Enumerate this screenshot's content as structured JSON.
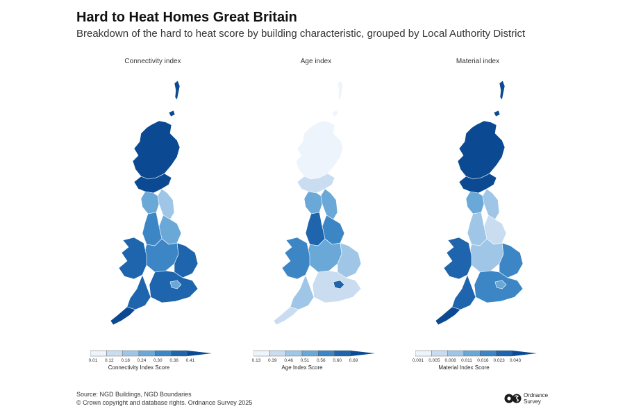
{
  "header": {
    "title": "Hard to Heat Homes Great Britain",
    "subtitle": "Breakdown of the hard to heat score by building characteristic, grouped by Local Authority District"
  },
  "palette": [
    "#eef4fb",
    "#c9dcf0",
    "#9fc6e6",
    "#6aa8d8",
    "#3d86c6",
    "#1f65ad",
    "#0b4a93"
  ],
  "panels": [
    {
      "title": "Connectivity index",
      "legend_label": "Connectivity Index Score",
      "ticks": [
        "0.01",
        "0.12",
        "0.18",
        "0.24",
        "0.30",
        "0.36",
        "0.41"
      ],
      "regions": {
        "shetland": 6,
        "orkney": 6,
        "scot_north": 6,
        "scot_south": 6,
        "north_east": 2,
        "cumbria": 3,
        "yorkshire": 3,
        "lancashire": 4,
        "midlands": 4,
        "east_anglia": 5,
        "wales": 5,
        "south_east": 5,
        "london": 3,
        "south_west": 5,
        "cornwall": 6,
        "n_ireland": null
      }
    },
    {
      "title": "Age index",
      "legend_label": "Age Index Score",
      "ticks": [
        "0.13",
        "0.39",
        "0.46",
        "0.51",
        "0.56",
        "0.60",
        "0.69"
      ],
      "regions": {
        "shetland": 0,
        "orkney": 0,
        "scot_north": 0,
        "scot_south": 1,
        "north_east": 3,
        "cumbria": 3,
        "yorkshire": 4,
        "lancashire": 5,
        "midlands": 3,
        "east_anglia": 2,
        "wales": 4,
        "south_east": 1,
        "london": 5,
        "south_west": 2,
        "cornwall": 1,
        "n_ireland": null
      }
    },
    {
      "title": "Material index",
      "legend_label": "Material Index Score",
      "ticks": [
        "0.001",
        "0.005",
        "0.008",
        "0.011",
        "0.016",
        "0.023",
        "0.043"
      ],
      "regions": {
        "shetland": 6,
        "orkney": 6,
        "scot_north": 6,
        "scot_south": 6,
        "north_east": 2,
        "cumbria": 3,
        "yorkshire": 1,
        "lancashire": 2,
        "midlands": 2,
        "east_anglia": 4,
        "wales": 5,
        "south_east": 4,
        "london": 3,
        "south_west": 5,
        "cornwall": 6,
        "n_ireland": null
      }
    }
  ],
  "footer": {
    "source": "Source: NGD Buildings, NGD Boundaries",
    "copyright": "© Crown copyright and database rights. Ordnance Survey 2025"
  },
  "brand": {
    "line1": "Ordnance",
    "line2": "Survey"
  }
}
